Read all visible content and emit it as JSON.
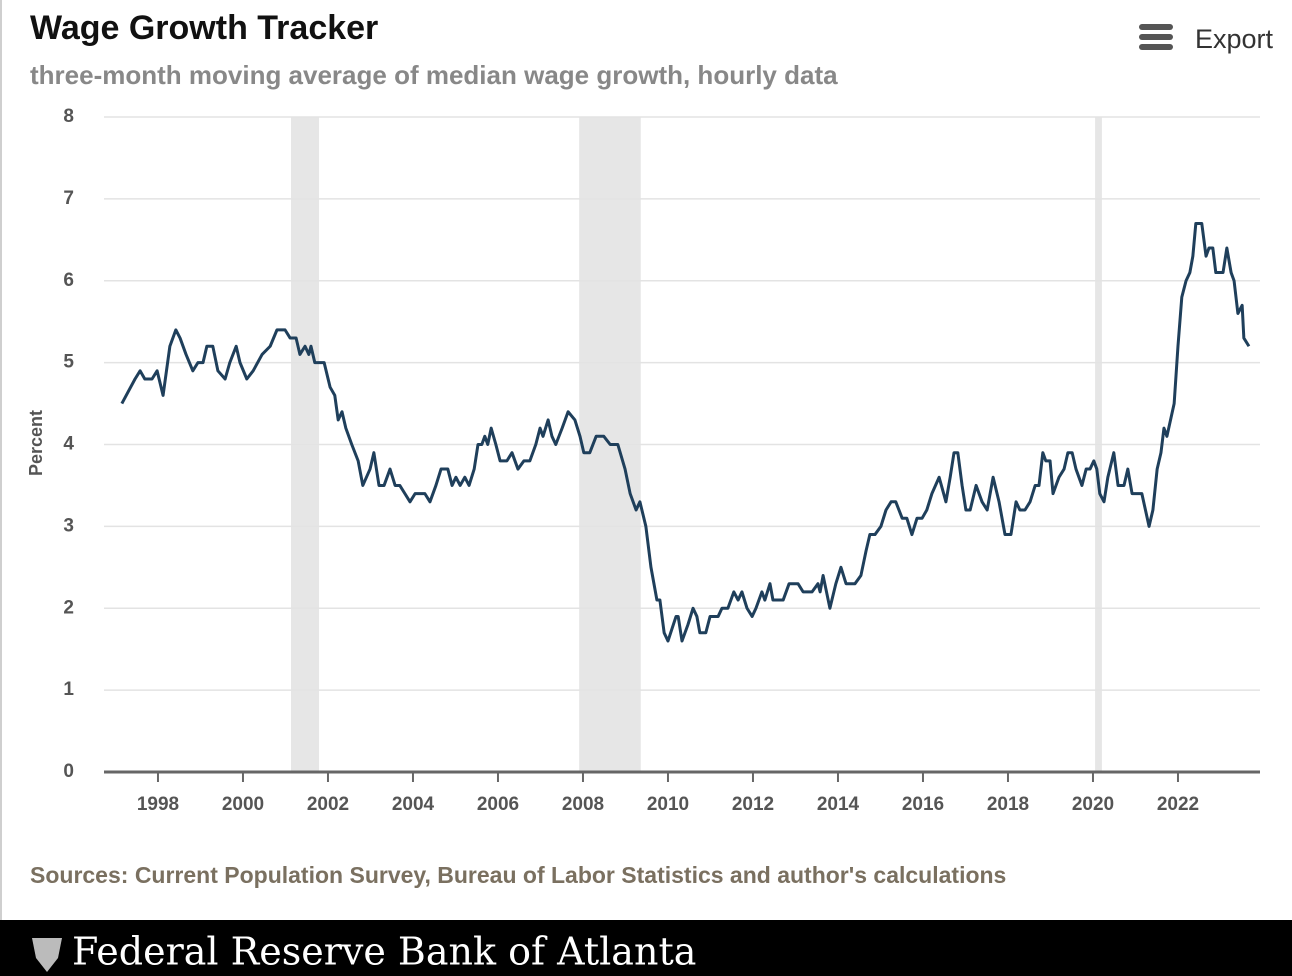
{
  "chart_data": {
    "type": "line",
    "title": "Wage Growth Tracker",
    "subtitle": "three-month moving average of median wage growth, hourly data",
    "export_label": "Export",
    "y_label": "Percent",
    "source": "Sources: Current Population Survey, Bureau of Labor Statistics and author's calculations",
    "footer": "Federal Reserve Bank of Atlanta",
    "xlim": [
      1996.73,
      2023.93
    ],
    "xticks": [
      1998,
      2000,
      2002,
      2004,
      2006,
      2008,
      2010,
      2012,
      2014,
      2016,
      2018,
      2020,
      2022
    ],
    "ylim": [
      0,
      8
    ],
    "yticks": [
      0,
      1,
      2,
      3,
      4,
      5,
      6,
      7,
      8
    ],
    "grid": true,
    "recession_color": "#e6e6e6",
    "recessions": [
      [
        2001.13,
        2001.79
      ],
      [
        2007.91,
        2009.36
      ],
      [
        2020.05,
        2020.21
      ]
    ],
    "series": [
      {
        "color": "#1f3f5b",
        "x": [
          1997.15,
          1997.46,
          1997.58,
          1997.69,
          1997.86,
          1997.98,
          1998.12,
          1998.28,
          1998.42,
          1998.52,
          1998.66,
          1998.82,
          1998.94,
          1999.06,
          1999.15,
          1999.29,
          1999.41,
          1999.58,
          1999.69,
          1999.84,
          1999.93,
          2000.09,
          2000.24,
          2000.45,
          2000.64,
          2000.8,
          2000.99,
          2001.11,
          2001.25,
          2001.34,
          2001.46,
          2001.55,
          2001.6,
          2001.69,
          2001.91,
          2002.05,
          2002.16,
          2002.24,
          2002.33,
          2002.42,
          2002.56,
          2002.71,
          2002.82,
          2002.99,
          2003.08,
          2003.2,
          2003.32,
          2003.46,
          2003.58,
          2003.69,
          2003.81,
          2003.93,
          2004.05,
          2004.28,
          2004.4,
          2004.54,
          2004.66,
          2004.82,
          2004.92,
          2005.01,
          2005.11,
          2005.22,
          2005.32,
          2005.44,
          2005.53,
          2005.62,
          2005.69,
          2005.76,
          2005.84,
          2005.95,
          2006.05,
          2006.21,
          2006.33,
          2006.47,
          2006.61,
          2006.75,
          2006.89,
          2006.99,
          2007.06,
          2007.18,
          2007.27,
          2007.36,
          2007.51,
          2007.65,
          2007.81,
          2007.93,
          2008.02,
          2008.16,
          2008.31,
          2008.49,
          2008.64,
          2008.82,
          2008.99,
          2009.11,
          2009.25,
          2009.34,
          2009.48,
          2009.6,
          2009.74,
          2009.81,
          2009.91,
          2010.0,
          2010.19,
          2010.24,
          2010.33,
          2010.47,
          2010.59,
          2010.68,
          2010.75,
          2010.89,
          2010.99,
          2011.18,
          2011.27,
          2011.41,
          2011.55,
          2011.65,
          2011.74,
          2011.86,
          2011.98,
          2012.07,
          2012.21,
          2012.28,
          2012.4,
          2012.47,
          2012.71,
          2012.85,
          2013.06,
          2013.18,
          2013.39,
          2013.53,
          2013.58,
          2013.65,
          2013.81,
          2013.95,
          2014.07,
          2014.19,
          2014.4,
          2014.54,
          2014.66,
          2014.75,
          2014.87,
          2015.01,
          2015.13,
          2015.25,
          2015.36,
          2015.51,
          2015.62,
          2015.74,
          2015.86,
          2015.98,
          2016.09,
          2016.21,
          2016.38,
          2016.54,
          2016.64,
          2016.73,
          2016.82,
          2016.92,
          2017.01,
          2017.11,
          2017.25,
          2017.39,
          2017.51,
          2017.65,
          2017.79,
          2017.93,
          2018.07,
          2018.19,
          2018.28,
          2018.4,
          2018.52,
          2018.64,
          2018.73,
          2018.82,
          2018.89,
          2018.99,
          2019.06,
          2019.2,
          2019.32,
          2019.41,
          2019.51,
          2019.6,
          2019.74,
          2019.84,
          2019.93,
          2020.02,
          2020.09,
          2020.16,
          2020.26,
          2020.35,
          2020.49,
          2020.59,
          2020.73,
          2020.82,
          2020.92,
          2021.15,
          2021.32,
          2021.41,
          2021.51,
          2021.6,
          2021.67,
          2021.74,
          2021.91,
          2022.0,
          2022.09,
          2022.19,
          2022.28,
          2022.35,
          2022.42,
          2022.56,
          2022.66,
          2022.73,
          2022.82,
          2022.89,
          2023.06,
          2023.15,
          2023.25,
          2023.32,
          2023.41,
          2023.51,
          2023.55,
          2023.67
        ],
        "values": [
          4.5,
          4.8,
          4.9,
          4.8,
          4.8,
          4.9,
          4.6,
          5.2,
          5.4,
          5.3,
          5.1,
          4.9,
          5.0,
          5.0,
          5.2,
          5.2,
          4.9,
          4.8,
          5.0,
          5.2,
          5.0,
          4.8,
          4.9,
          5.1,
          5.2,
          5.4,
          5.4,
          5.3,
          5.3,
          5.1,
          5.2,
          5.1,
          5.2,
          5.0,
          5.0,
          4.7,
          4.6,
          4.3,
          4.4,
          4.2,
          4.0,
          3.8,
          3.5,
          3.7,
          3.9,
          3.5,
          3.5,
          3.7,
          3.5,
          3.5,
          3.4,
          3.3,
          3.4,
          3.4,
          3.3,
          3.5,
          3.7,
          3.7,
          3.5,
          3.6,
          3.5,
          3.6,
          3.5,
          3.7,
          4.0,
          4.0,
          4.1,
          4.0,
          4.2,
          4.0,
          3.8,
          3.8,
          3.9,
          3.7,
          3.8,
          3.8,
          4.0,
          4.2,
          4.1,
          4.3,
          4.1,
          4.0,
          4.2,
          4.4,
          4.3,
          4.1,
          3.9,
          3.9,
          4.1,
          4.1,
          4.0,
          4.0,
          3.7,
          3.4,
          3.2,
          3.3,
          3.0,
          2.5,
          2.1,
          2.1,
          1.7,
          1.6,
          1.9,
          1.9,
          1.6,
          1.8,
          2.0,
          1.9,
          1.7,
          1.7,
          1.9,
          1.9,
          2.0,
          2.0,
          2.2,
          2.1,
          2.2,
          2.0,
          1.9,
          2.0,
          2.2,
          2.1,
          2.3,
          2.1,
          2.1,
          2.3,
          2.3,
          2.2,
          2.2,
          2.3,
          2.2,
          2.4,
          2.0,
          2.3,
          2.5,
          2.3,
          2.3,
          2.4,
          2.7,
          2.9,
          2.9,
          3.0,
          3.2,
          3.3,
          3.3,
          3.1,
          3.1,
          2.9,
          3.1,
          3.1,
          3.2,
          3.4,
          3.6,
          3.3,
          3.6,
          3.9,
          3.9,
          3.5,
          3.2,
          3.2,
          3.5,
          3.3,
          3.2,
          3.6,
          3.3,
          2.9,
          2.9,
          3.3,
          3.2,
          3.2,
          3.3,
          3.5,
          3.5,
          3.9,
          3.8,
          3.8,
          3.4,
          3.6,
          3.7,
          3.9,
          3.9,
          3.7,
          3.5,
          3.7,
          3.7,
          3.8,
          3.7,
          3.4,
          3.3,
          3.6,
          3.9,
          3.5,
          3.5,
          3.7,
          3.4,
          3.4,
          3.0,
          3.2,
          3.7,
          3.9,
          4.2,
          4.1,
          4.5,
          5.2,
          5.8,
          6.0,
          6.1,
          6.3,
          6.7,
          6.7,
          6.3,
          6.4,
          6.4,
          6.1,
          6.1,
          6.4,
          6.1,
          6.0,
          5.6,
          5.7,
          5.3,
          5.2
        ]
      }
    ]
  }
}
